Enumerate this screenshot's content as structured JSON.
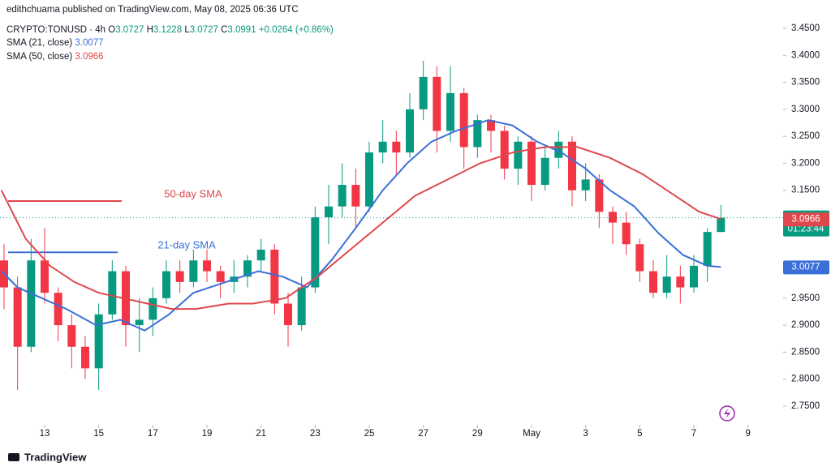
{
  "chart_data": {
    "type": "candlestick",
    "header": {
      "published": "edithchuama published on TradingView.com, May 08, 2025 06:36 UTC",
      "symbol": "CRYPTO:TONUSD · 4h",
      "ohlc_letters": [
        "O",
        "H",
        "L",
        "C"
      ],
      "change": "+0.0264 (+0.86%)"
    },
    "x": [
      11.5,
      12,
      12.5,
      13,
      13.5,
      14,
      14.5,
      15,
      15.5,
      16,
      16.5,
      17,
      17.5,
      18,
      18.5,
      19,
      19.5,
      20,
      20.5,
      21,
      21.5,
      22,
      22.5,
      23,
      23.5,
      24,
      24.5,
      25,
      25.5,
      26,
      26.5,
      27,
      27.5,
      28,
      28.5,
      29,
      29.5,
      30,
      30.5,
      31,
      31.5,
      32,
      32.5,
      33,
      33.5,
      34,
      34.5,
      35,
      35.5,
      36,
      36.5,
      37,
      37.5,
      38
    ],
    "open": [
      3.02,
      2.97,
      2.86,
      3.02,
      2.96,
      2.9,
      2.86,
      2.82,
      2.92,
      3.0,
      2.9,
      2.91,
      2.95,
      3.0,
      2.98,
      3.02,
      3.0,
      2.98,
      2.99,
      3.02,
      3.04,
      2.94,
      2.9,
      2.97,
      3.1,
      3.12,
      3.16,
      3.12,
      3.22,
      3.24,
      3.22,
      3.3,
      3.36,
      3.26,
      3.33,
      3.23,
      3.28,
      3.26,
      3.19,
      3.24,
      3.16,
      3.21,
      3.24,
      3.15,
      3.17,
      3.11,
      3.09,
      3.05,
      3.0,
      2.96,
      2.99,
      2.97,
      3.01,
      3.0727
    ],
    "high": [
      3.05,
      2.99,
      3.06,
      3.08,
      2.97,
      2.92,
      2.88,
      2.94,
      3.02,
      3.01,
      2.95,
      2.97,
      3.02,
      3.02,
      3.04,
      3.04,
      3.01,
      3.02,
      3.03,
      3.06,
      3.05,
      2.96,
      2.99,
      3.12,
      3.16,
      3.2,
      3.19,
      3.24,
      3.28,
      3.26,
      3.33,
      3.39,
      3.38,
      3.38,
      3.34,
      3.29,
      3.29,
      3.27,
      3.25,
      3.25,
      3.23,
      3.26,
      3.25,
      3.2,
      3.18,
      3.12,
      3.11,
      3.06,
      3.02,
      3.03,
      3.01,
      3.03,
      3.08,
      3.1228
    ],
    "low": [
      2.93,
      2.78,
      2.85,
      2.94,
      2.87,
      2.82,
      2.8,
      2.78,
      2.91,
      2.86,
      2.85,
      2.88,
      2.94,
      2.96,
      2.97,
      2.98,
      2.95,
      2.96,
      2.97,
      3.0,
      2.92,
      2.86,
      2.89,
      2.96,
      3.05,
      3.1,
      3.08,
      3.11,
      3.2,
      3.18,
      3.21,
      3.28,
      3.22,
      3.24,
      3.19,
      3.21,
      3.22,
      3.17,
      3.16,
      3.13,
      3.15,
      3.19,
      3.12,
      3.13,
      3.08,
      3.05,
      3.03,
      2.98,
      2.95,
      2.95,
      2.94,
      2.96,
      2.98,
      3.0727
    ],
    "close": [
      2.97,
      2.86,
      3.02,
      2.96,
      2.9,
      2.86,
      2.82,
      2.92,
      3.0,
      2.9,
      2.91,
      2.95,
      3.0,
      2.98,
      3.02,
      3.0,
      2.98,
      2.99,
      3.02,
      3.04,
      2.94,
      2.9,
      2.97,
      3.1,
      3.12,
      3.16,
      3.12,
      3.22,
      3.24,
      3.22,
      3.3,
      3.36,
      3.26,
      3.33,
      3.23,
      3.28,
      3.26,
      3.19,
      3.24,
      3.16,
      3.21,
      3.24,
      3.15,
      3.17,
      3.11,
      3.09,
      3.05,
      3.0,
      2.96,
      2.99,
      2.97,
      3.01,
      3.0727,
      3.0991
    ],
    "up_color": "#089981",
    "down_color": "#f23645",
    "countdown": "01:23:44",
    "series": [
      {
        "name": "SMA (21, close)",
        "value": 3.0077,
        "color": "#3a6fd8",
        "x": [
          11.4,
          12.0,
          12.9,
          13.8,
          14.9,
          15.8,
          16.7,
          17.6,
          18.5,
          19.7,
          20.9,
          21.8,
          22.7,
          23.6,
          24.5,
          25.5,
          26.4,
          27.3,
          28.2,
          29.4,
          30.3,
          31.2,
          32.1,
          33.0,
          33.9,
          34.8,
          35.7,
          36.6,
          37.5,
          38.0
        ],
        "values": [
          3.0,
          2.97,
          2.95,
          2.93,
          2.9,
          2.91,
          2.89,
          2.92,
          2.96,
          2.98,
          3.0,
          2.99,
          2.97,
          3.02,
          3.08,
          3.15,
          3.2,
          3.24,
          3.26,
          3.28,
          3.27,
          3.24,
          3.22,
          3.19,
          3.15,
          3.12,
          3.07,
          3.03,
          3.01,
          3.0077
        ]
      },
      {
        "name": "SMA (50, close)",
        "value": 3.0966,
        "color": "#e0474c",
        "x": [
          11.4,
          12.3,
          13.2,
          14.1,
          15.0,
          15.9,
          16.8,
          17.7,
          18.6,
          19.8,
          20.7,
          21.9,
          23.1,
          24.3,
          25.5,
          26.7,
          27.9,
          29.1,
          30.3,
          31.5,
          32.7,
          33.9,
          35.1,
          36.3,
          37.2,
          38.0
        ],
        "values": [
          3.15,
          3.06,
          3.01,
          2.98,
          2.96,
          2.95,
          2.94,
          2.93,
          2.93,
          2.94,
          2.94,
          2.95,
          2.99,
          3.04,
          3.09,
          3.14,
          3.17,
          3.2,
          3.22,
          3.23,
          3.23,
          3.21,
          3.18,
          3.14,
          3.11,
          3.0966
        ]
      }
    ],
    "annotations": [
      {
        "text": "50-day SMA",
        "value": 3.13,
        "color": "#e0474c"
      },
      {
        "text": "21-day SMA",
        "value": 3.035,
        "color": "#3a6fd8"
      }
    ],
    "xlim": [
      11.35,
      40.3
    ],
    "ylim": [
      2.7214,
      3.4635
    ],
    "xticks": [
      13,
      15,
      17,
      19,
      21,
      23,
      25,
      27,
      29,
      {
        "value": 31,
        "label": "May"
      },
      {
        "value": 33,
        "label": "3"
      },
      {
        "value": 35,
        "label": "5"
      },
      {
        "value": 37,
        "label": "7"
      },
      {
        "value": 39,
        "label": "9"
      }
    ],
    "yticks": [
      {
        "value": 3.45,
        "label": "3.4500"
      },
      {
        "value": 3.4,
        "label": "3.4000"
      },
      {
        "value": 3.35,
        "label": "3.3500"
      },
      {
        "value": 3.3,
        "label": "3.3000"
      },
      {
        "value": 3.25,
        "label": "3.2500"
      },
      {
        "value": 3.2,
        "label": "3.2000"
      },
      {
        "value": 3.15,
        "label": "3.1500"
      },
      {
        "value": 2.95,
        "label": "2.9500"
      },
      {
        "value": 2.9,
        "label": "2.9000"
      },
      {
        "value": 2.85,
        "label": "2.8500"
      },
      {
        "value": 2.8,
        "label": "2.8000"
      },
      {
        "value": 2.75,
        "label": "2.7500"
      }
    ],
    "grid": false
  },
  "footer": "TradingView"
}
